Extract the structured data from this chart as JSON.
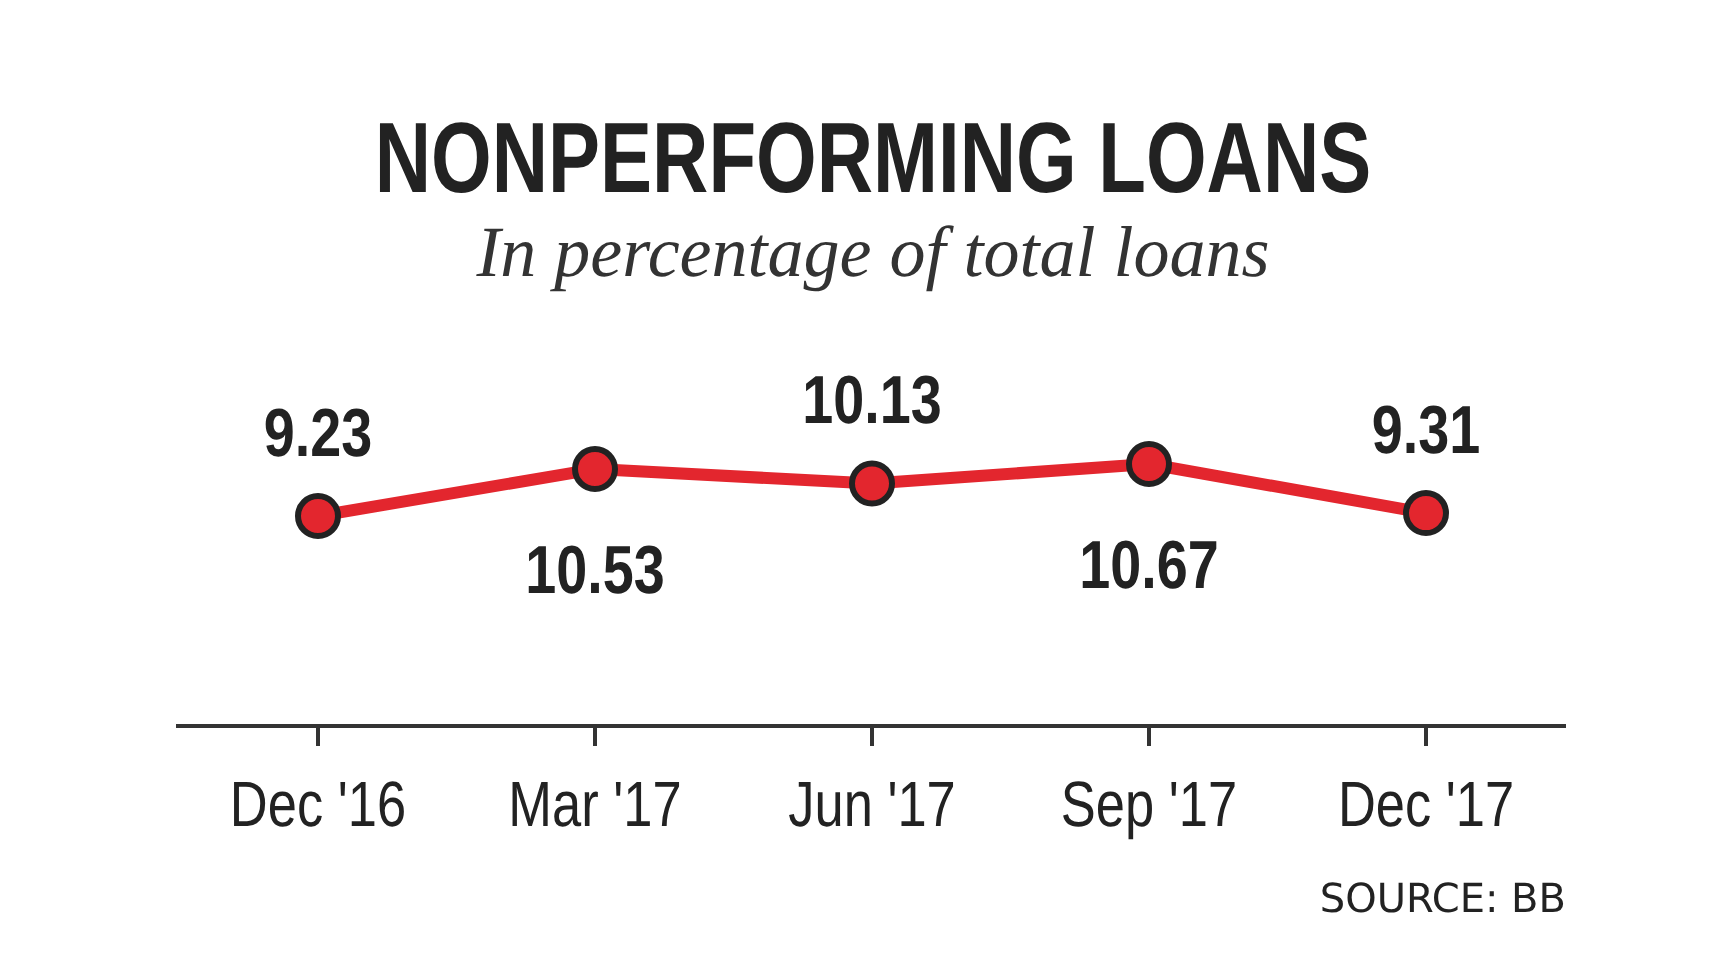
{
  "chart_data": {
    "type": "line",
    "title": "NONPERFORMING  LOANS",
    "subtitle": "In percentage of total loans",
    "categories": [
      "Dec '16",
      "Mar '17",
      "Jun '17",
      "Sep '17",
      "Dec '17"
    ],
    "series": [
      {
        "color": "#e3262e",
        "values": [
          9.23,
          10.53,
          10.13,
          10.67,
          9.31
        ]
      }
    ],
    "data_labels": true,
    "marker": "circle",
    "line_style": "solid",
    "annotations": [
      "SOURCE: BB"
    ]
  }
}
